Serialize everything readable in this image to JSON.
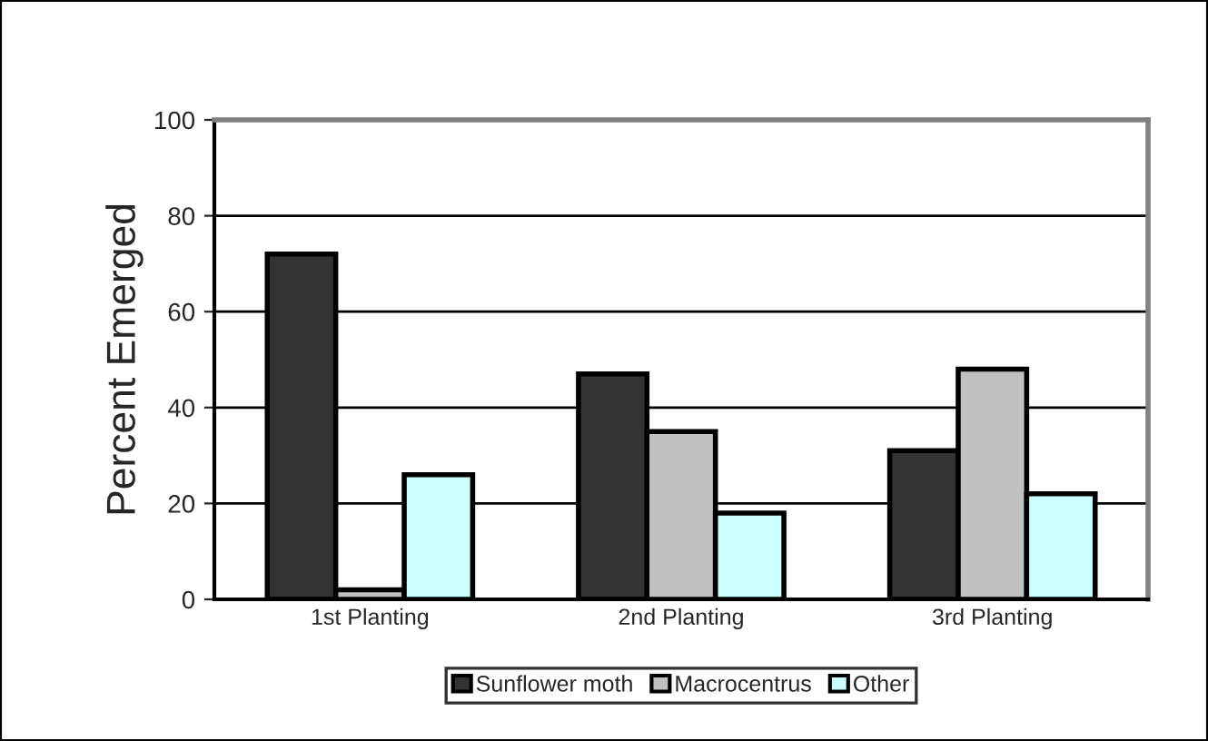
{
  "chart_data": {
    "type": "bar",
    "ylabel": "Percent Emerged",
    "categories": [
      "1st Planting",
      "2nd Planting",
      "3rd Planting"
    ],
    "series": [
      {
        "name": "Sunflower moth",
        "color": "#333333",
        "values": [
          72,
          47,
          31
        ]
      },
      {
        "name": "Macrocentrus",
        "color": "#c0c0c0",
        "values": [
          2,
          35,
          48
        ]
      },
      {
        "name": "Other",
        "color": "#ccffff",
        "values": [
          26,
          18,
          22
        ]
      }
    ],
    "ylim": [
      0,
      100
    ],
    "yticks": [
      0,
      20,
      40,
      60,
      80,
      100
    ],
    "grid": "y",
    "legend": "bottom"
  }
}
